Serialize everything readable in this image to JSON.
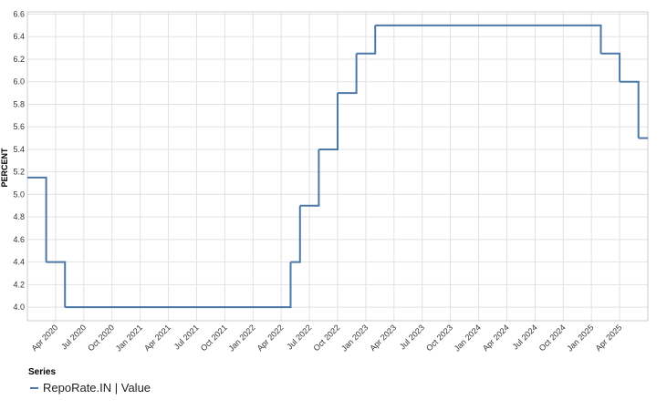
{
  "chart_data": {
    "type": "step-line",
    "ylabel": "PERCENT",
    "legend_title": "Series",
    "x": [
      "2020-01",
      "2020-03",
      "2020-05",
      "2022-05",
      "2022-06",
      "2022-08",
      "2022-10",
      "2022-12",
      "2023-02",
      "2025-02",
      "2025-04",
      "2025-06"
    ],
    "series": [
      {
        "name": "RepoRate.IN | Value",
        "color": "#4c78a8",
        "values": [
          5.15,
          4.4,
          4.0,
          4.4,
          4.9,
          5.4,
          5.9,
          6.25,
          6.5,
          6.25,
          6.0,
          5.5
        ]
      }
    ],
    "xlim": [
      "2020-01",
      "2025-07"
    ],
    "xticks": [
      {
        "value": "2020-04",
        "label": "Apr 2020"
      },
      {
        "value": "2020-07",
        "label": "Jul 2020"
      },
      {
        "value": "2020-10",
        "label": "Oct 2020"
      },
      {
        "value": "2021-01",
        "label": "Jan 2021"
      },
      {
        "value": "2021-04",
        "label": "Apr 2021"
      },
      {
        "value": "2021-07",
        "label": "Jul 2021"
      },
      {
        "value": "2021-10",
        "label": "Oct 2021"
      },
      {
        "value": "2022-01",
        "label": "Jan 2022"
      },
      {
        "value": "2022-04",
        "label": "Apr 2022"
      },
      {
        "value": "2022-07",
        "label": "Jul 2022"
      },
      {
        "value": "2022-10",
        "label": "Oct 2022"
      },
      {
        "value": "2023-01",
        "label": "Jan 2023"
      },
      {
        "value": "2023-04",
        "label": "Apr 2023"
      },
      {
        "value": "2023-07",
        "label": "Jul 2023"
      },
      {
        "value": "2023-10",
        "label": "Oct 2023"
      },
      {
        "value": "2024-01",
        "label": "Jan 2024"
      },
      {
        "value": "2024-04",
        "label": "Apr 2024"
      },
      {
        "value": "2024-07",
        "label": "Jul 2024"
      },
      {
        "value": "2024-10",
        "label": "Oct 2024"
      },
      {
        "value": "2025-01",
        "label": "Jan 2025"
      },
      {
        "value": "2025-04",
        "label": "Apr 2025"
      }
    ],
    "ylim": [
      3.88,
      6.62
    ],
    "yticks": [
      {
        "value": 4,
        "label": "4.0"
      },
      4.2,
      4.4,
      4.6,
      4.8,
      {
        "value": 5,
        "label": "5.0"
      },
      5.2,
      5.4,
      5.6,
      5.8,
      {
        "value": 6,
        "label": "6.0"
      },
      6.2,
      6.4,
      6.6
    ],
    "grid": true
  }
}
